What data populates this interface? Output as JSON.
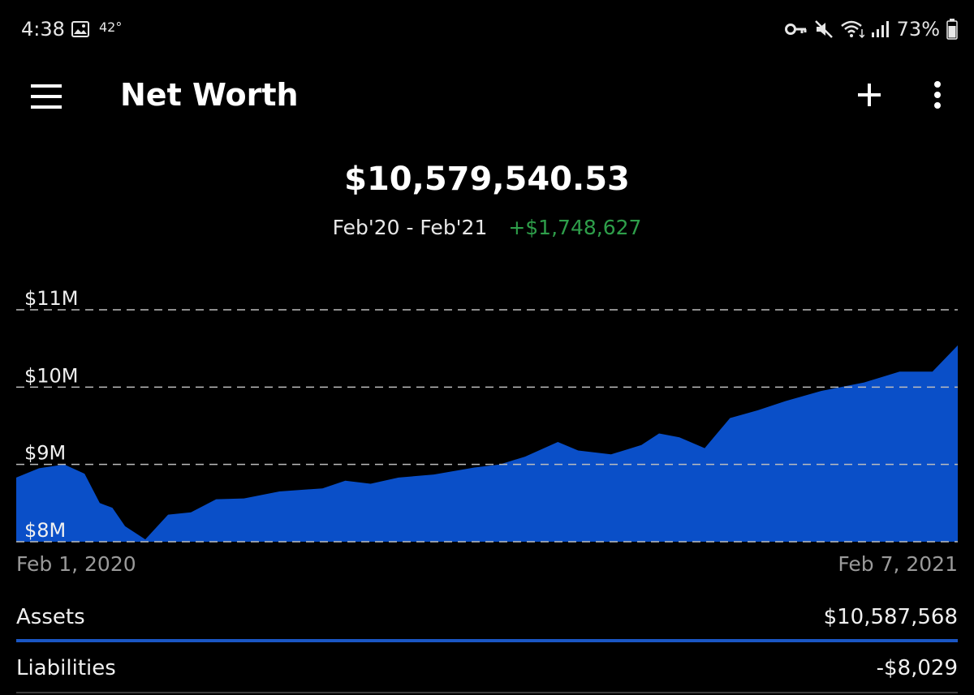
{
  "status_bar": {
    "time": "4:38",
    "temperature": "42°",
    "battery": "73%",
    "icons": [
      "image-icon",
      "key-icon",
      "mute-icon",
      "wifi-icon",
      "signal-icon",
      "battery-icon"
    ]
  },
  "app_bar": {
    "title": "Net Worth",
    "icons": [
      "menu-icon",
      "add-icon",
      "more-vert-icon"
    ]
  },
  "summary": {
    "total": "$10,579,540.53",
    "period": "Feb'20 - Feb'21",
    "change": "+$1,748,627"
  },
  "colors": {
    "background": "#000000",
    "area_fill": "#0a4fc8",
    "positive": "#2e9e4a",
    "assets_bar": "#1a56c4",
    "liabilities_bar": "#3a3a3a"
  },
  "chart_data": {
    "type": "area",
    "y_ticks": [
      "$11M",
      "$10M",
      "$9M",
      "$8M"
    ],
    "ylim": [
      8000000,
      11000000
    ],
    "x_start_label": "Feb 1, 2020",
    "x_end_label": "Feb 7, 2021",
    "xlim": [
      "2020-02-01",
      "2021-02-07"
    ],
    "grid": true,
    "series": [
      {
        "points": [
          [
            "2020-02-01",
            8830000
          ],
          [
            "2020-02-10",
            8950000
          ],
          [
            "2020-02-20",
            9000000
          ],
          [
            "2020-02-28",
            8880000
          ],
          [
            "2020-03-05",
            8500000
          ],
          [
            "2020-03-10",
            8440000
          ],
          [
            "2020-03-15",
            8200000
          ],
          [
            "2020-03-23",
            8030000
          ],
          [
            "2020-04-01",
            8350000
          ],
          [
            "2020-04-10",
            8380000
          ],
          [
            "2020-04-20",
            8550000
          ],
          [
            "2020-05-01",
            8560000
          ],
          [
            "2020-05-15",
            8650000
          ],
          [
            "2020-06-01",
            8690000
          ],
          [
            "2020-06-10",
            8790000
          ],
          [
            "2020-06-20",
            8750000
          ],
          [
            "2020-07-01",
            8830000
          ],
          [
            "2020-07-15",
            8870000
          ],
          [
            "2020-07-31",
            8960000
          ],
          [
            "2020-08-10",
            9000000
          ],
          [
            "2020-08-20",
            9100000
          ],
          [
            "2020-09-02",
            9290000
          ],
          [
            "2020-09-10",
            9180000
          ],
          [
            "2020-09-23",
            9130000
          ],
          [
            "2020-10-05",
            9250000
          ],
          [
            "2020-10-12",
            9400000
          ],
          [
            "2020-10-20",
            9350000
          ],
          [
            "2020-10-30",
            9210000
          ],
          [
            "2020-11-09",
            9600000
          ],
          [
            "2020-11-20",
            9700000
          ],
          [
            "2020-12-01",
            9820000
          ],
          [
            "2020-12-15",
            9950000
          ],
          [
            "2021-01-01",
            10060000
          ],
          [
            "2021-01-15",
            10200000
          ],
          [
            "2021-01-28",
            10200000
          ],
          [
            "2021-02-07",
            10540000
          ]
        ]
      }
    ]
  },
  "rows": [
    {
      "label": "Assets",
      "value": "$10,587,568",
      "bar_fraction": 1.0
    },
    {
      "label": "Liabilities",
      "value": "-$8,029",
      "bar_fraction": 0.0
    }
  ]
}
